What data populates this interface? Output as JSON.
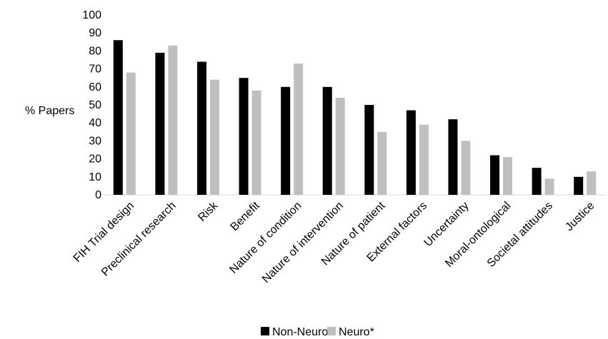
{
  "chart_data": {
    "type": "bar",
    "ylabel": "% Papers",
    "ylim": [
      0,
      100
    ],
    "yticks": [
      0,
      10,
      20,
      30,
      40,
      50,
      60,
      70,
      80,
      90,
      100
    ],
    "grid": false,
    "legend_position": "bottom",
    "categories": [
      "FIH Trial design",
      "Preclinical research",
      "Risk",
      "Benefit",
      "Nature of condition",
      "Nature of intervention",
      "Nature of patient",
      "External factors",
      "Uncertainty",
      "Moral-ontological",
      "Societal attitudes",
      "Justice"
    ],
    "series": [
      {
        "name": "Non-Neuro",
        "color": "#000000",
        "values": [
          86,
          79,
          74,
          65,
          60,
          60,
          50,
          47,
          42,
          22,
          15,
          10
        ]
      },
      {
        "name": "Neuro*",
        "color": "#bfbfbf",
        "values": [
          68,
          83,
          64,
          58,
          73,
          54,
          35,
          39,
          30,
          21,
          9,
          13
        ]
      }
    ]
  }
}
